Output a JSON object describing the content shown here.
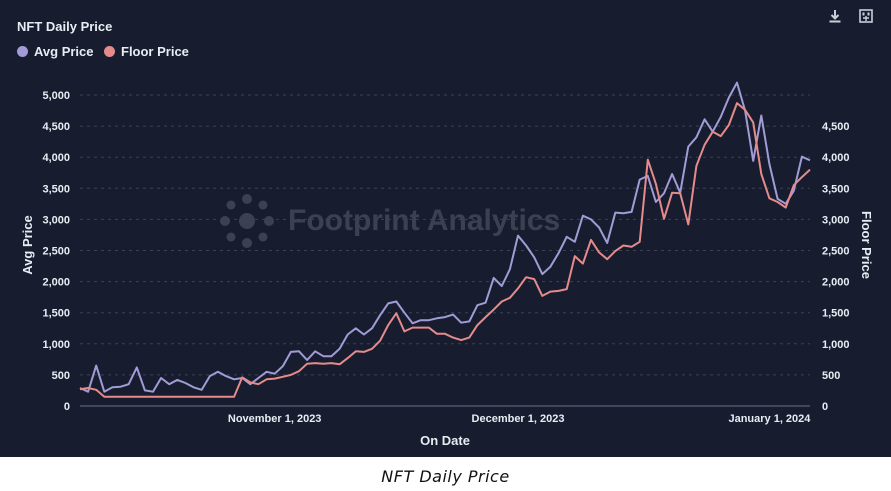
{
  "caption": "NFT Daily Price",
  "toolbar": {
    "download_icon": "download-icon",
    "settings_icon": "chart-settings-icon"
  },
  "watermark": {
    "text": "Footprint Analytics",
    "icon": "footprint-logo-icon"
  },
  "colors": {
    "avg": "#a29bd6",
    "floor": "#e58b8b",
    "background": "#171d2e",
    "grid": "#3a4256",
    "text": "#e8ecf3"
  },
  "chart_data": {
    "type": "line",
    "title": "NFT Daily Price",
    "xlabel": "On Date",
    "ylabel": "Avg Price",
    "y2label": "Floor Price",
    "x_start": "2023-10-08",
    "x_end": "2024-01-03",
    "x_ticks": [
      {
        "day": 24,
        "label": "November 1, 2023"
      },
      {
        "day": 54,
        "label": "December 1, 2023"
      },
      {
        "day": 85,
        "label": "January 1, 2024"
      }
    ],
    "ylim": [
      0,
      5000
    ],
    "yticks": [
      "0",
      "500",
      "1,000",
      "1,500",
      "2,000",
      "2,500",
      "3,000",
      "3,500",
      "4,000",
      "4,500",
      "5,000"
    ],
    "y2lim": [
      0,
      4750
    ],
    "y2ticks": [
      "0",
      "500",
      "1,000",
      "1,500",
      "2,000",
      "2,500",
      "3,000",
      "3,500",
      "4,000",
      "4,500"
    ],
    "grid": true,
    "legend": "top-left",
    "series": [
      {
        "name": "Avg Price",
        "axis": "left",
        "color": "#a29bd6",
        "values": [
          290,
          230,
          650,
          230,
          300,
          310,
          350,
          620,
          250,
          230,
          450,
          350,
          420,
          370,
          300,
          260,
          480,
          550,
          480,
          430,
          450,
          350,
          450,
          550,
          520,
          640,
          870,
          880,
          740,
          880,
          800,
          800,
          920,
          1150,
          1250,
          1150,
          1250,
          1460,
          1650,
          1680,
          1500,
          1330,
          1380,
          1380,
          1410,
          1430,
          1470,
          1340,
          1360,
          1620,
          1660,
          2060,
          1930,
          2200,
          2740,
          2580,
          2390,
          2120,
          2240,
          2460,
          2720,
          2640,
          3060,
          3000,
          2870,
          2620,
          3110,
          3100,
          3120,
          3640,
          3700,
          3280,
          3420,
          3730,
          3430,
          4170,
          4320,
          4610,
          4410,
          4650,
          4960,
          5200,
          4750,
          3940,
          4670,
          3890,
          3330,
          3250,
          3460,
          4010,
          3950
        ]
      },
      {
        "name": "Floor Price",
        "axis": "right",
        "color": "#e58b8b",
        "values": [
          270,
          290,
          260,
          150,
          150,
          150,
          150,
          150,
          150,
          150,
          150,
          150,
          150,
          150,
          150,
          150,
          150,
          150,
          150,
          150,
          460,
          380,
          350,
          430,
          440,
          470,
          500,
          560,
          680,
          690,
          680,
          690,
          670,
          770,
          880,
          870,
          920,
          1050,
          1300,
          1490,
          1200,
          1260,
          1260,
          1260,
          1160,
          1160,
          1100,
          1060,
          1100,
          1300,
          1430,
          1550,
          1680,
          1740,
          1890,
          2070,
          2040,
          1770,
          1840,
          1850,
          1880,
          2410,
          2290,
          2670,
          2470,
          2360,
          2490,
          2580,
          2560,
          2640,
          3960,
          3570,
          3010,
          3430,
          3420,
          2920,
          3860,
          4200,
          4410,
          4340,
          4520,
          4870,
          4760,
          4560,
          3730,
          3340,
          3280,
          3190,
          3550,
          3680,
          3800
        ]
      }
    ]
  }
}
